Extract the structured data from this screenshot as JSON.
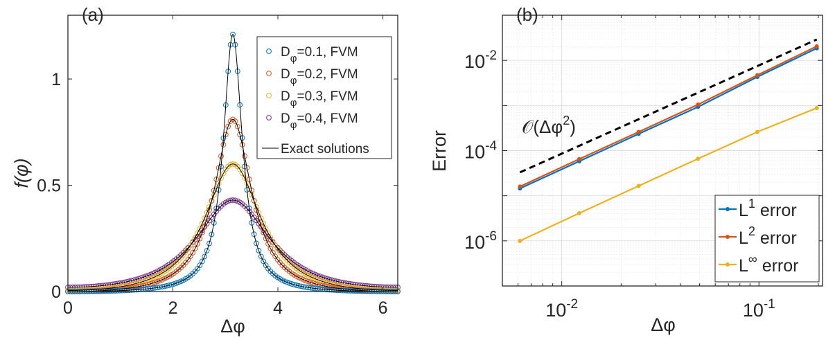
{
  "chart_data": [
    {
      "type": "scatter",
      "panel_label": "(a)",
      "xlabel": "Δφ",
      "ylabel": "f(φ)",
      "xlim": [
        0,
        6.283
      ],
      "ylim": [
        0,
        1.3
      ],
      "xticks": [
        0,
        2,
        4,
        6
      ],
      "xtick_labels": [
        "0",
        "2",
        "4",
        "6"
      ],
      "yticks": [
        0,
        0.5,
        1
      ],
      "ytick_labels": [
        "0",
        "0.5",
        "1"
      ],
      "grid": false,
      "legend_placement": "top-right",
      "series": [
        {
          "name": "D_φ=0.1, FVM",
          "legend_main": "D",
          "legend_sub": "φ",
          "legend_rest": "=0.1, FVM",
          "color": "#0072BD",
          "D": 0.1,
          "peak": 1.21,
          "baseline": 0.0
        },
        {
          "name": "D_φ=0.2, FVM",
          "legend_main": "D",
          "legend_sub": "φ",
          "legend_rest": "=0.2, FVM",
          "color": "#D95319",
          "D": 0.2,
          "peak": 0.81,
          "baseline": 0.0
        },
        {
          "name": "D_φ=0.3, FVM",
          "legend_main": "D",
          "legend_sub": "φ",
          "legend_rest": "=0.3, FVM",
          "color": "#EDB120",
          "D": 0.3,
          "peak": 0.6,
          "baseline": 0.005
        },
        {
          "name": "D_φ=0.4, FVM",
          "legend_main": "D",
          "legend_sub": "φ",
          "legend_rest": "=0.4, FVM",
          "color": "#7E2F8E",
          "D": 0.4,
          "peak": 0.43,
          "baseline": 0.02
        }
      ],
      "exact_label": "Exact solutions",
      "exact_color": "#000000",
      "center": 3.14159
    },
    {
      "type": "line",
      "panel_label": "(b)",
      "xlabel": "Δφ",
      "ylabel": "Error",
      "xscale": "log",
      "yscale": "log",
      "xlim": [
        0.005,
        0.21
      ],
      "ylim": [
        1e-07,
        0.1
      ],
      "xticks": [
        0.01,
        0.1
      ],
      "xtick_base": "10",
      "xtick_exponents": [
        "-2",
        "-1"
      ],
      "yticks": [
        1e-06,
        0.0001,
        0.01
      ],
      "ytick_base": "10",
      "ytick_exponents": [
        "-6",
        "-4",
        "-2"
      ],
      "grid": true,
      "legend_placement": "bottom-right",
      "x": [
        0.00614,
        0.01227,
        0.02454,
        0.04909,
        0.09817,
        0.19635
      ],
      "series": [
        {
          "name": "L¹ error",
          "legend_main": "L",
          "legend_sup": "1",
          "legend_rest": " error",
          "color": "#0072BD",
          "values": [
            1.45e-05,
            5.8e-05,
            0.000235,
            0.00093,
            0.0043,
            0.0185
          ]
        },
        {
          "name": "L² error",
          "legend_main": "L",
          "legend_sup": "2",
          "legend_rest": " error",
          "color": "#D95319",
          "values": [
            1.6e-05,
            6.5e-05,
            0.00026,
            0.00105,
            0.0047,
            0.0205
          ]
        },
        {
          "name": "L∞ error",
          "legend_main": "L",
          "legend_sup": "∞",
          "legend_rest": " error",
          "color": "#EDB120",
          "values": [
            1e-06,
            4.1e-06,
            1.65e-05,
            6.6e-05,
            0.00026,
            0.00088
          ]
        }
      ],
      "reference_line": {
        "label_prefix": "𝒪(Δφ",
        "label_sup": "2",
        "label_suffix": ")",
        "x": [
          0.00614,
          0.19635
        ],
        "values": [
          3.3e-05,
          0.029
        ],
        "color": "#000000",
        "style": "dashed"
      }
    }
  ]
}
